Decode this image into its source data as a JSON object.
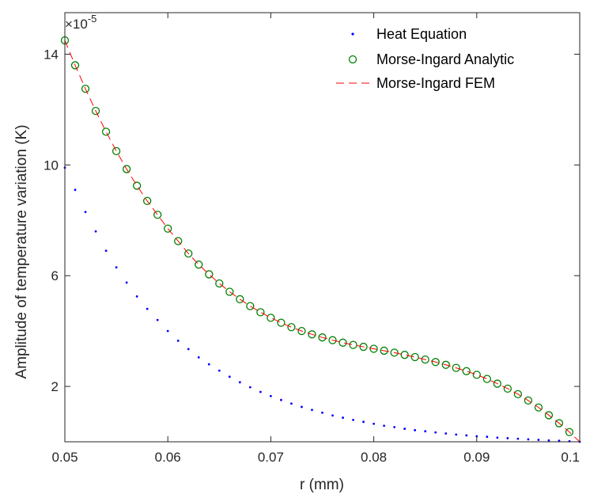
{
  "chart_data": {
    "type": "line",
    "xlabel": "r (mm)",
    "ylabel": "Amplitude of temperature variation (K)",
    "y_exponent_label": "×10",
    "y_exponent_power": "-5",
    "xlim": [
      0.05,
      0.1
    ],
    "ylim": [
      0,
      15.5
    ],
    "x_ticks": [
      0.05,
      0.06,
      0.07,
      0.08,
      0.09,
      0.1
    ],
    "x_tick_labels": [
      "0.05",
      "0.06",
      "0.07",
      "0.08",
      "0.09",
      "0.1"
    ],
    "y_ticks": [
      2,
      6,
      10,
      14
    ],
    "y_tick_labels": [
      "2",
      "6",
      "10",
      "14"
    ],
    "grid": false,
    "legend_position": "top-right",
    "series": [
      {
        "name": "Heat Equation",
        "style": "dots",
        "color": "#0000ff",
        "x": [
          0.05,
          0.051,
          0.052,
          0.053,
          0.054,
          0.055,
          0.056,
          0.057,
          0.058,
          0.059,
          0.06,
          0.061,
          0.062,
          0.063,
          0.064,
          0.065,
          0.066,
          0.067,
          0.068,
          0.069,
          0.07,
          0.071,
          0.072,
          0.073,
          0.074,
          0.075,
          0.076,
          0.077,
          0.078,
          0.079,
          0.08,
          0.081,
          0.082,
          0.083,
          0.084,
          0.085,
          0.086,
          0.087,
          0.088,
          0.089,
          0.09,
          0.091,
          0.092,
          0.093,
          0.094,
          0.095,
          0.096,
          0.097,
          0.098,
          0.099,
          0.1
        ],
        "y": [
          9.9,
          9.1,
          8.3,
          7.6,
          6.9,
          6.3,
          5.75,
          5.25,
          4.8,
          4.4,
          4.0,
          3.65,
          3.35,
          3.05,
          2.8,
          2.57,
          2.35,
          2.15,
          1.97,
          1.8,
          1.65,
          1.51,
          1.38,
          1.26,
          1.15,
          1.05,
          0.95,
          0.87,
          0.79,
          0.72,
          0.65,
          0.58,
          0.53,
          0.47,
          0.42,
          0.38,
          0.34,
          0.3,
          0.26,
          0.23,
          0.2,
          0.18,
          0.15,
          0.13,
          0.11,
          0.09,
          0.07,
          0.05,
          0.04,
          0.02,
          0.0
        ]
      },
      {
        "name": "Morse-Ingard Analytic",
        "style": "circles",
        "color": "#008000",
        "x": [
          0.05,
          0.051,
          0.052,
          0.053,
          0.054,
          0.055,
          0.056,
          0.057,
          0.058,
          0.059,
          0.06,
          0.061,
          0.062,
          0.063,
          0.064,
          0.065,
          0.066,
          0.067,
          0.068,
          0.069,
          0.07,
          0.071,
          0.072,
          0.073,
          0.074,
          0.075,
          0.076,
          0.077,
          0.078,
          0.079,
          0.08,
          0.081,
          0.082,
          0.083,
          0.084,
          0.085,
          0.086,
          0.087,
          0.088,
          0.089,
          0.09,
          0.091,
          0.092,
          0.093,
          0.094,
          0.095,
          0.096,
          0.097,
          0.098,
          0.099
        ],
        "y": [
          14.5,
          13.6,
          12.75,
          11.95,
          11.2,
          10.5,
          9.85,
          9.25,
          8.7,
          8.2,
          7.7,
          7.25,
          6.8,
          6.4,
          6.05,
          5.72,
          5.42,
          5.15,
          4.9,
          4.68,
          4.48,
          4.3,
          4.14,
          4.0,
          3.88,
          3.77,
          3.67,
          3.58,
          3.5,
          3.43,
          3.36,
          3.29,
          3.22,
          3.14,
          3.06,
          2.97,
          2.88,
          2.78,
          2.67,
          2.55,
          2.42,
          2.27,
          2.1,
          1.92,
          1.72,
          1.49,
          1.24,
          0.96,
          0.67,
          0.35
        ]
      },
      {
        "name": "Morse-Ingard FEM",
        "style": "dashed",
        "color": "#ff0000",
        "x": [
          0.05,
          0.051,
          0.052,
          0.053,
          0.054,
          0.055,
          0.056,
          0.057,
          0.058,
          0.059,
          0.06,
          0.061,
          0.062,
          0.063,
          0.064,
          0.065,
          0.066,
          0.067,
          0.068,
          0.069,
          0.07,
          0.071,
          0.072,
          0.073,
          0.074,
          0.075,
          0.076,
          0.077,
          0.078,
          0.079,
          0.08,
          0.081,
          0.082,
          0.083,
          0.084,
          0.085,
          0.086,
          0.087,
          0.088,
          0.089,
          0.09,
          0.091,
          0.092,
          0.093,
          0.094,
          0.095,
          0.096,
          0.097,
          0.098,
          0.099,
          0.1
        ],
        "y": [
          14.5,
          13.6,
          12.75,
          11.95,
          11.2,
          10.5,
          9.85,
          9.25,
          8.7,
          8.2,
          7.7,
          7.25,
          6.8,
          6.4,
          6.05,
          5.72,
          5.42,
          5.15,
          4.9,
          4.68,
          4.48,
          4.3,
          4.14,
          4.0,
          3.88,
          3.77,
          3.67,
          3.58,
          3.5,
          3.43,
          3.36,
          3.29,
          3.22,
          3.14,
          3.06,
          2.97,
          2.88,
          2.78,
          2.67,
          2.55,
          2.42,
          2.27,
          2.1,
          1.92,
          1.72,
          1.49,
          1.24,
          0.96,
          0.67,
          0.35,
          0.0
        ]
      }
    ]
  }
}
